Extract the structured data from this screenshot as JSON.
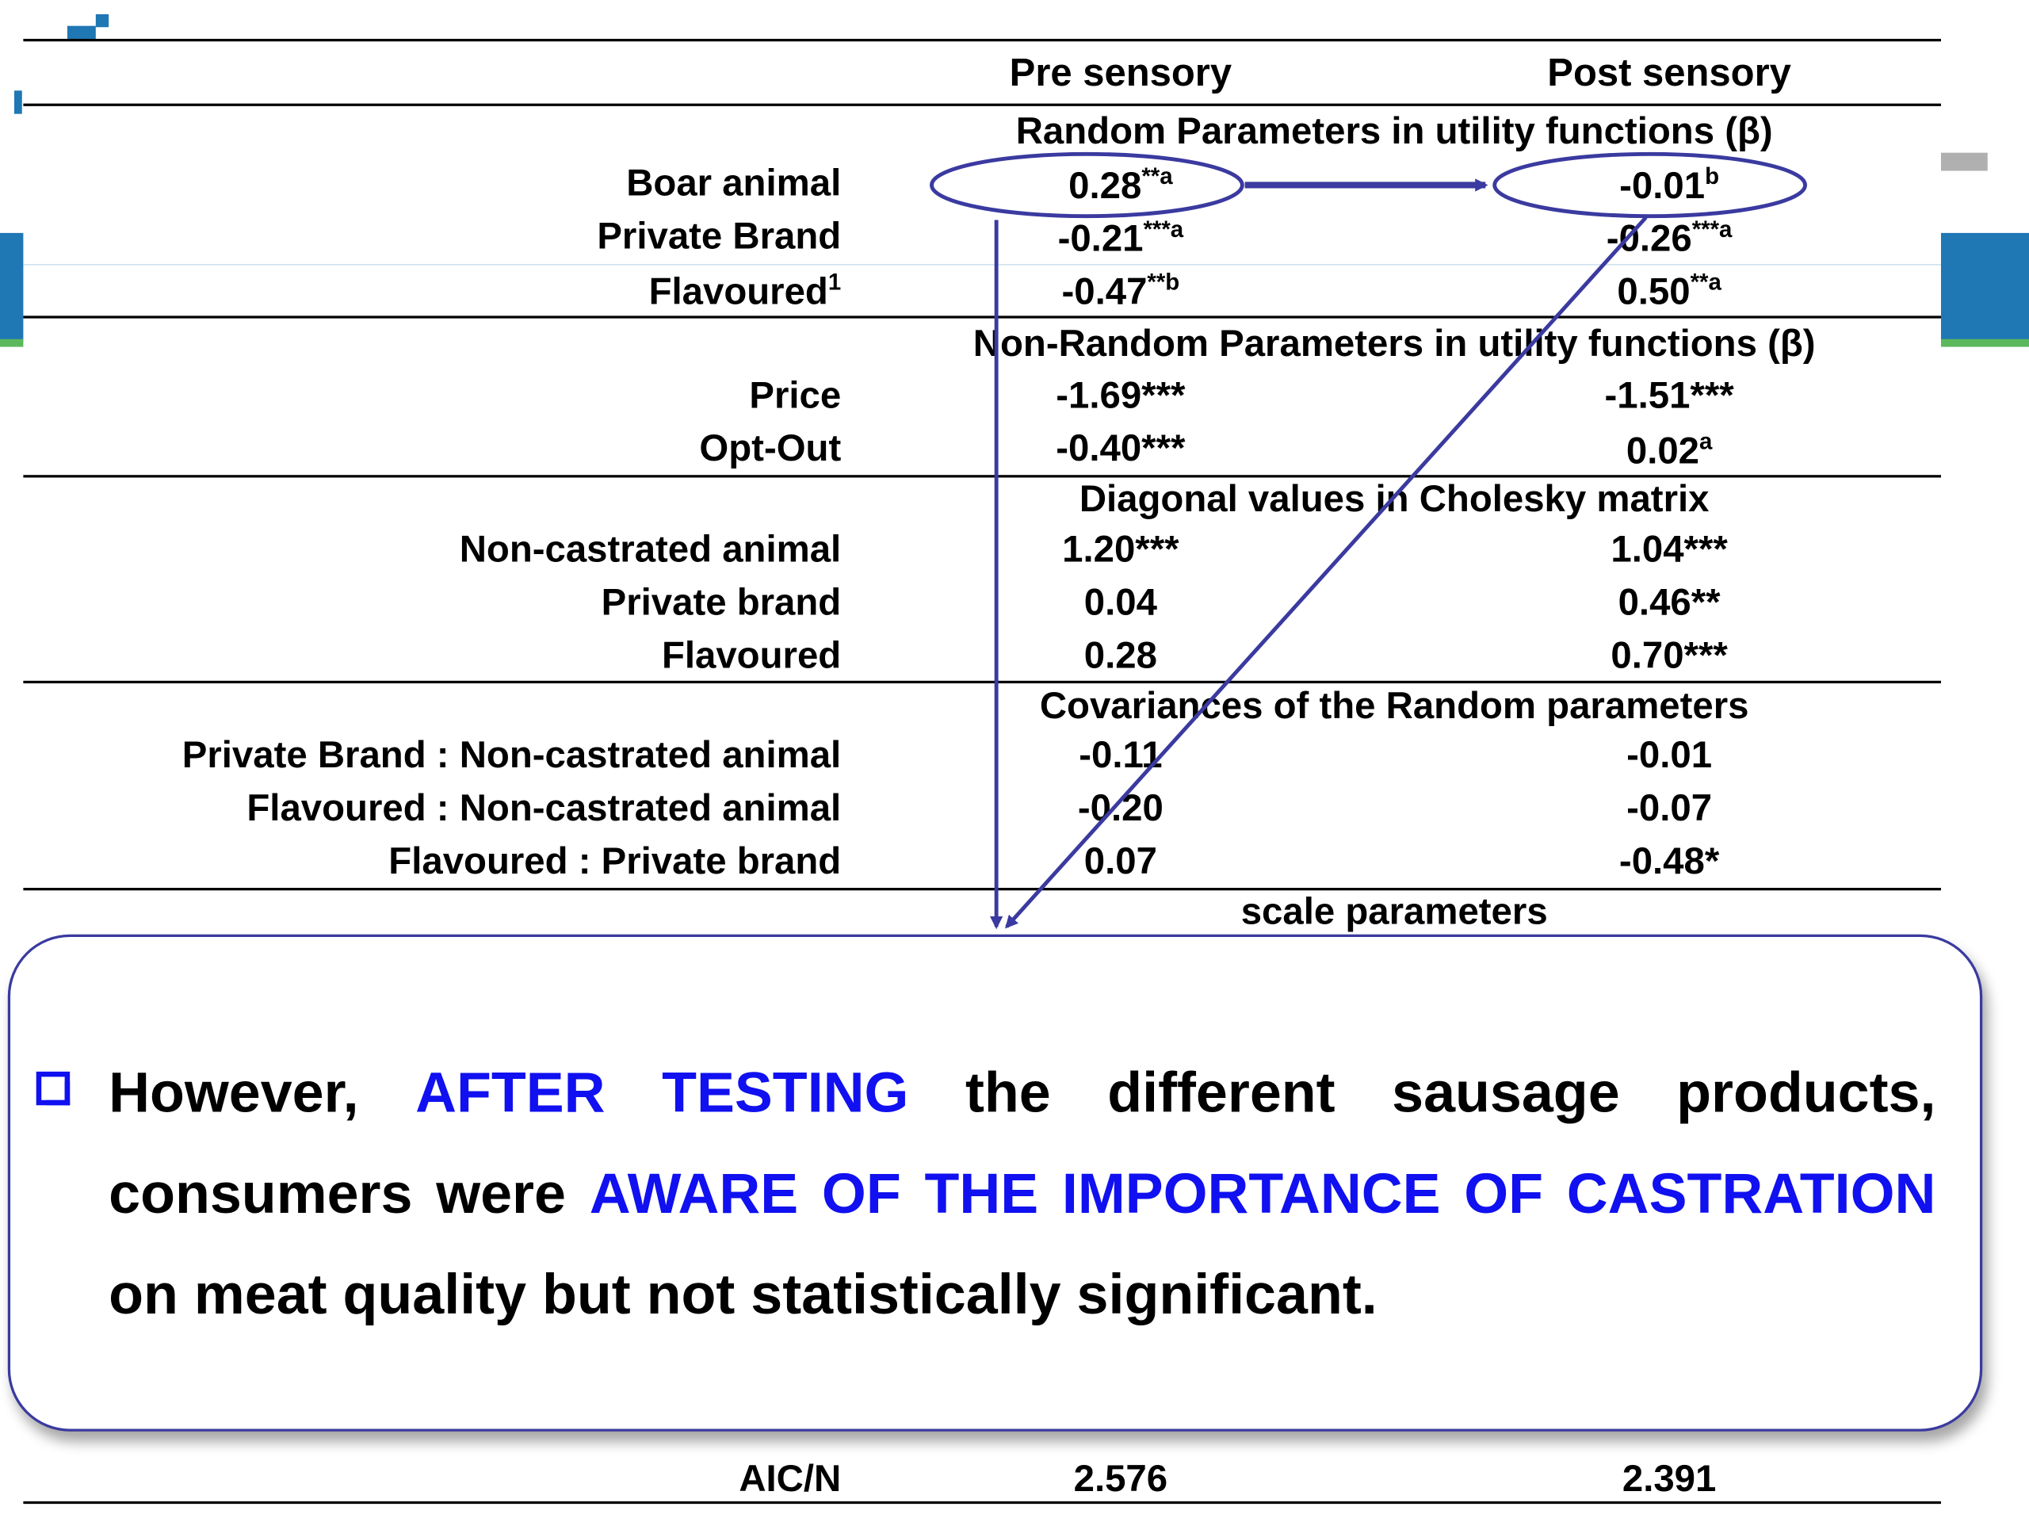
{
  "table": {
    "col_headers": [
      "Pre sensory",
      "Post sensory"
    ],
    "sections": [
      {
        "header": "Random Parameters in utility functions (β)",
        "rows": [
          {
            "label": "Boar animal",
            "pre": "0.28",
            "pre_sup": "**a",
            "post": "-0.01",
            "post_sup": "b",
            "label_sup": ""
          },
          {
            "label": "Private Brand",
            "pre": "-0.21",
            "pre_sup": "***a",
            "post": "-0.26",
            "post_sup": "***a",
            "label_sup": ""
          },
          {
            "label": "Flavoured",
            "label_sup": "1",
            "pre": "-0.47",
            "pre_sup": "**b",
            "post": "0.50",
            "post_sup": "**a"
          }
        ]
      },
      {
        "header": "Non-Random Parameters in utility functions (β)",
        "rows": [
          {
            "label": "Price",
            "pre": "-1.69***",
            "post": "-1.51***"
          },
          {
            "label": "Opt-Out",
            "pre": "-0.40***",
            "post": "0.02",
            "post_sup": "a"
          }
        ]
      },
      {
        "header": "Diagonal values in Cholesky matrix",
        "rows": [
          {
            "label": "Non-castrated animal",
            "pre": "1.20***",
            "post": "1.04***"
          },
          {
            "label": "Private brand",
            "pre": "0.04",
            "post": "0.46**"
          },
          {
            "label": "Flavoured",
            "pre": "0.28",
            "post": "0.70***"
          }
        ]
      },
      {
        "header": "Covariances of the Random parameters",
        "rows": [
          {
            "label": "Private Brand : Non-castrated animal",
            "pre": "-0.11",
            "post": "-0.01"
          },
          {
            "label": "Flavoured : Non-castrated animal",
            "pre": "-0.20",
            "post": "-0.07"
          },
          {
            "label": "Flavoured : Private brand",
            "pre": "0.07",
            "post": "-0.48*"
          }
        ]
      },
      {
        "header": "scale parameters",
        "rows": []
      }
    ],
    "bottom_rows": [
      {
        "label": "AIC/N",
        "pre": "2.576",
        "post": "2.391"
      }
    ]
  },
  "callout": {
    "line1": [
      "However,",
      "AFTER",
      "TESTING",
      "the",
      "different",
      "sausage",
      "products,"
    ],
    "line2": [
      "consumers",
      "were",
      "AWARE",
      "OF",
      "THE",
      "IMPORTANCE",
      "OF",
      "CASTRATION"
    ],
    "line3": "on meat quality but not statistically significant."
  },
  "colors": {
    "accent_blue": "#1010f0",
    "arrow_navy": "#3a3aa0",
    "side_bar_blue": "#1f77b4",
    "side_bar_green": "#5cb85c"
  },
  "icons": [
    "checkbox-bullet-icon",
    "arrow-icon",
    "ellipse-highlight-icon"
  ]
}
